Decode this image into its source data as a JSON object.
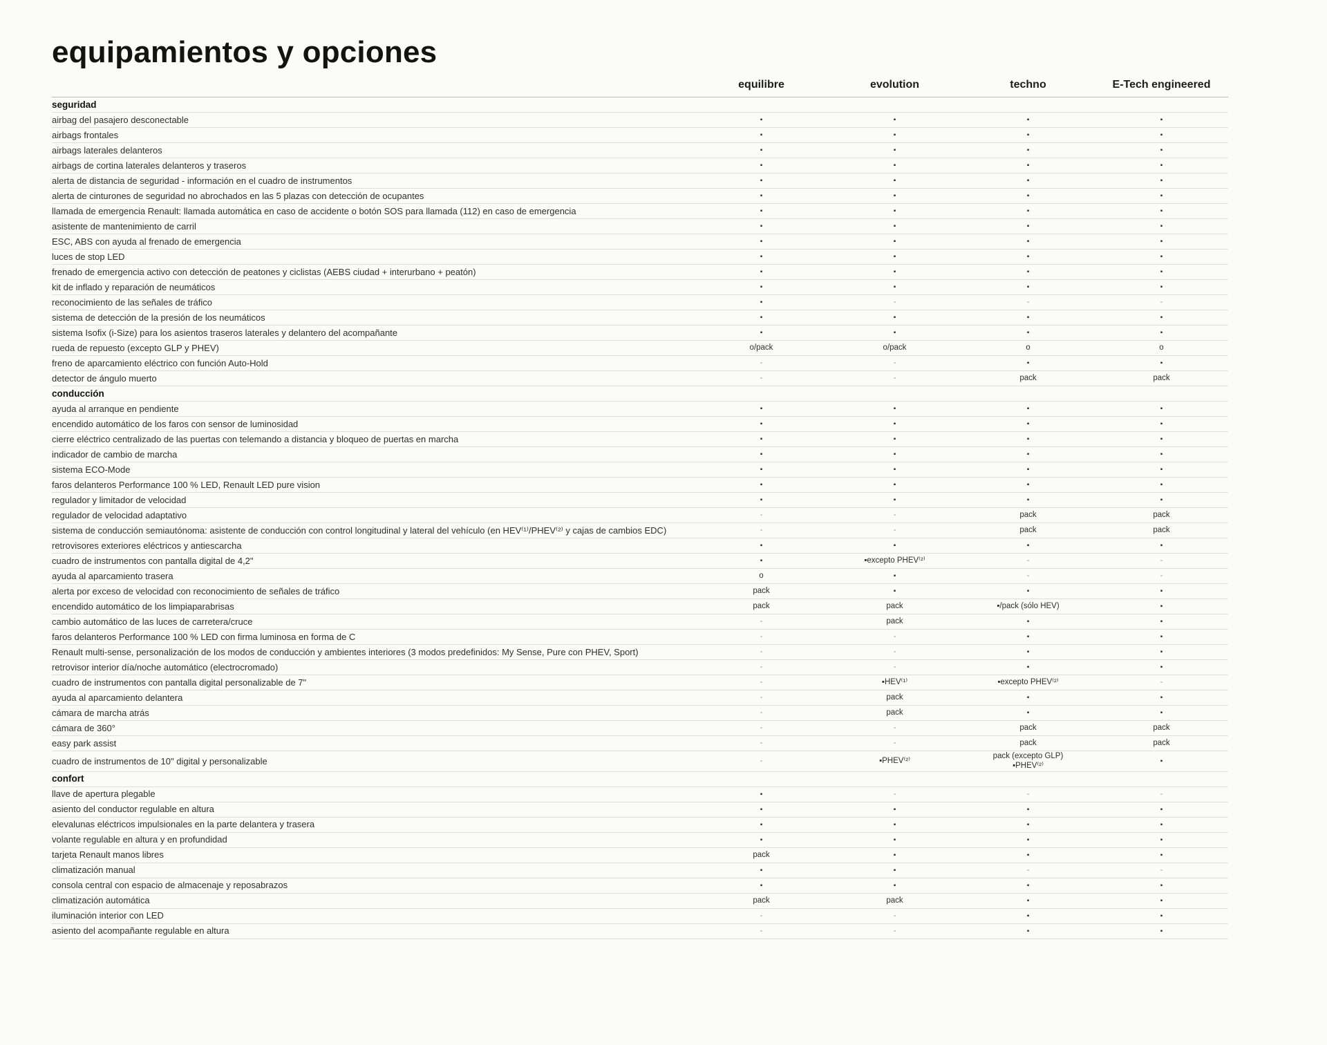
{
  "page": {
    "title": "equipamientos y opciones"
  },
  "columns": [
    "equilibre",
    "evolution",
    "techno",
    "E-Tech engineered"
  ],
  "marks_legend": {
    "standard": "▪",
    "option": "o",
    "pack": "pack",
    "not_available": "-"
  },
  "sections": [
    {
      "name": "seguridad",
      "rows": [
        {
          "label": "airbag del pasajero desconectable",
          "values": [
            "▪",
            "▪",
            "▪",
            "▪"
          ]
        },
        {
          "label": "airbags frontales",
          "values": [
            "▪",
            "▪",
            "▪",
            "▪"
          ]
        },
        {
          "label": "airbags laterales delanteros",
          "values": [
            "▪",
            "▪",
            "▪",
            "▪"
          ]
        },
        {
          "label": "airbags de cortina laterales delanteros y traseros",
          "values": [
            "▪",
            "▪",
            "▪",
            "▪"
          ]
        },
        {
          "label": "alerta de distancia de seguridad - información en el cuadro de instrumentos",
          "values": [
            "▪",
            "▪",
            "▪",
            "▪"
          ]
        },
        {
          "label": "alerta de cinturones de seguridad no abrochados en las 5 plazas con detección de ocupantes",
          "values": [
            "▪",
            "▪",
            "▪",
            "▪"
          ]
        },
        {
          "label": "llamada de emergencia Renault: llamada automática en caso de accidente o botón SOS para llamada (112) en caso de emergencia",
          "values": [
            "▪",
            "▪",
            "▪",
            "▪"
          ]
        },
        {
          "label": "asistente de mantenimiento de carril",
          "values": [
            "▪",
            "▪",
            "▪",
            "▪"
          ]
        },
        {
          "label": "ESC, ABS con ayuda al frenado de emergencia",
          "values": [
            "▪",
            "▪",
            "▪",
            "▪"
          ]
        },
        {
          "label": "luces de stop LED",
          "values": [
            "▪",
            "▪",
            "▪",
            "▪"
          ]
        },
        {
          "label": "frenado de emergencia activo con detección de peatones y ciclistas (AEBS ciudad + interurbano + peatón)",
          "values": [
            "▪",
            "▪",
            "▪",
            "▪"
          ]
        },
        {
          "label": "kit de inflado y reparación de neumáticos",
          "values": [
            "▪",
            "▪",
            "▪",
            "▪"
          ]
        },
        {
          "label": "reconocimiento de las señales de tráfico",
          "values": [
            "▪",
            "-",
            "-",
            "-"
          ]
        },
        {
          "label": "sistema de detección de la presión de los neumáticos",
          "values": [
            "▪",
            "▪",
            "▪",
            "▪"
          ]
        },
        {
          "label": "sistema Isofix (i-Size) para los asientos traseros laterales y delantero del acompañante",
          "values": [
            "▪",
            "▪",
            "▪",
            "▪"
          ]
        },
        {
          "label": "rueda de repuesto (excepto GLP y PHEV)",
          "values": [
            "o/pack",
            "o/pack",
            "o",
            "o"
          ]
        },
        {
          "label": "freno de aparcamiento eléctrico con función Auto-Hold",
          "values": [
            "-",
            "-",
            "▪",
            "▪"
          ]
        },
        {
          "label": "detector de ángulo muerto",
          "values": [
            "-",
            "-",
            "pack",
            "pack"
          ]
        }
      ]
    },
    {
      "name": "conducción",
      "rows": [
        {
          "label": "ayuda al arranque en pendiente",
          "values": [
            "▪",
            "▪",
            "▪",
            "▪"
          ]
        },
        {
          "label": "encendido automático de los faros con sensor de luminosidad",
          "values": [
            "▪",
            "▪",
            "▪",
            "▪"
          ]
        },
        {
          "label": "cierre eléctrico centralizado de las puertas con telemando a distancia y bloqueo de puertas en marcha",
          "values": [
            "▪",
            "▪",
            "▪",
            "▪"
          ]
        },
        {
          "label": "indicador de cambio de marcha",
          "values": [
            "▪",
            "▪",
            "▪",
            "▪"
          ]
        },
        {
          "label": "sistema ECO-Mode",
          "values": [
            "▪",
            "▪",
            "▪",
            "▪"
          ]
        },
        {
          "label": "faros delanteros Performance 100 % LED, Renault LED pure vision",
          "values": [
            "▪",
            "▪",
            "▪",
            "▪"
          ]
        },
        {
          "label": "regulador y limitador de velocidad",
          "values": [
            "▪",
            "▪",
            "▪",
            "▪"
          ]
        },
        {
          "label": "regulador de velocidad adaptativo",
          "values": [
            "-",
            "-",
            "pack",
            "pack"
          ]
        },
        {
          "label": "sistema de conducción semiautónoma: asistente de conducción con control longitudinal y lateral del vehículo (en HEV⁽¹⁾/PHEV⁽²⁾ y cajas de cambios EDC)",
          "values": [
            "-",
            "-",
            "pack",
            "pack"
          ]
        },
        {
          "label": "retrovisores exteriores eléctricos y antiescarcha",
          "values": [
            "▪",
            "▪",
            "▪",
            "▪"
          ]
        },
        {
          "label": "cuadro de instrumentos con pantalla digital de 4,2\"",
          "values": [
            "▪",
            "▪excepto PHEV⁽²⁾",
            "-",
            "-"
          ]
        },
        {
          "label": "ayuda al aparcamiento trasera",
          "values": [
            "o",
            "▪",
            "-",
            "-"
          ]
        },
        {
          "label": "alerta por exceso de velocidad con reconocimiento de señales de tráfico",
          "values": [
            "pack",
            "▪",
            "▪",
            "▪"
          ]
        },
        {
          "label": "encendido automático de los limpiaparabrisas",
          "values": [
            "pack",
            "pack",
            "▪/pack (sólo HEV)",
            "▪"
          ]
        },
        {
          "label": "cambio automático de las luces de carretera/cruce",
          "values": [
            "-",
            "pack",
            "▪",
            "▪"
          ]
        },
        {
          "label": "faros delanteros Performance 100 % LED con firma luminosa en forma de C",
          "values": [
            "-",
            "-",
            "▪",
            "▪"
          ]
        },
        {
          "label": "Renault multi-sense, personalización de los modos de conducción y ambientes interiores (3 modos predefinidos: My Sense, Pure con PHEV, Sport)",
          "values": [
            "-",
            "-",
            "▪",
            "▪"
          ]
        },
        {
          "label": "retrovisor interior día/noche automático (electrocromado)",
          "values": [
            "-",
            "-",
            "▪",
            "▪"
          ]
        },
        {
          "label": "cuadro de instrumentos con pantalla digital personalizable de 7\"",
          "values": [
            "-",
            "▪HEV⁽¹⁾",
            "▪excepto PHEV⁽²⁾",
            "-"
          ]
        },
        {
          "label": "ayuda al aparcamiento delantera",
          "values": [
            "-",
            "pack",
            "▪",
            "▪"
          ]
        },
        {
          "label": "cámara de marcha atrás",
          "values": [
            "-",
            "pack",
            "▪",
            "▪"
          ]
        },
        {
          "label": "cámara de 360°",
          "values": [
            "-",
            "-",
            "pack",
            "pack"
          ]
        },
        {
          "label": "easy park assist",
          "values": [
            "-",
            "-",
            "pack",
            "pack"
          ]
        },
        {
          "label": "cuadro de instrumentos de 10\" digital y personalizable",
          "values": [
            "-",
            "▪PHEV⁽²⁾",
            "pack (excepto GLP)\n▪PHEV⁽²⁾",
            "▪"
          ]
        }
      ]
    },
    {
      "name": "confort",
      "rows": [
        {
          "label": "llave de apertura plegable",
          "values": [
            "▪",
            "-",
            "-",
            "-"
          ]
        },
        {
          "label": "asiento del conductor regulable en altura",
          "values": [
            "▪",
            "▪",
            "▪",
            "▪"
          ]
        },
        {
          "label": "elevalunas eléctricos impulsionales en la parte delantera y trasera",
          "values": [
            "▪",
            "▪",
            "▪",
            "▪"
          ]
        },
        {
          "label": "volante regulable en altura y en profundidad",
          "values": [
            "▪",
            "▪",
            "▪",
            "▪"
          ]
        },
        {
          "label": "tarjeta Renault manos libres",
          "values": [
            "pack",
            "▪",
            "▪",
            "▪"
          ]
        },
        {
          "label": "climatización manual",
          "values": [
            "▪",
            "▪",
            "-",
            "-"
          ]
        },
        {
          "label": "consola central con espacio de almacenaje y reposabrazos",
          "values": [
            "▪",
            "▪",
            "▪",
            "▪"
          ]
        },
        {
          "label": "climatización automática",
          "values": [
            "pack",
            "pack",
            "▪",
            "▪"
          ]
        },
        {
          "label": "iluminación interior con LED",
          "values": [
            "-",
            "-",
            "▪",
            "▪"
          ]
        },
        {
          "label": "asiento del acompañante regulable en altura",
          "values": [
            "-",
            "-",
            "▪",
            "▪"
          ]
        }
      ]
    }
  ]
}
